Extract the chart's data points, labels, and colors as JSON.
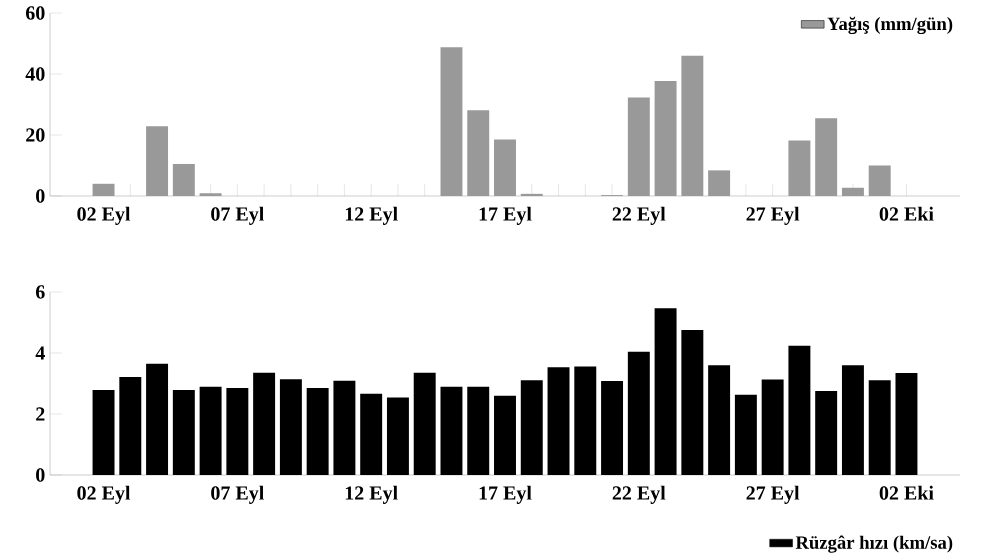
{
  "chart_data": [
    {
      "type": "bar",
      "categories": [
        "02 Eyl",
        null,
        null,
        null,
        null,
        "07 Eyl",
        null,
        null,
        null,
        null,
        "12 Eyl",
        null,
        null,
        null,
        null,
        "17 Eyl",
        null,
        null,
        null,
        null,
        "22 Eyl",
        null,
        null,
        null,
        null,
        "27 Eyl",
        null,
        null,
        null,
        null,
        "02 Eki"
      ],
      "series": [
        {
          "name": "Yağış (mm/gün)",
          "color": "#999999",
          "values": [
            4.0,
            0,
            22.9,
            10.5,
            0.9,
            0,
            0,
            0,
            0,
            0,
            0,
            0,
            0,
            48.8,
            28.1,
            18.5,
            0.7,
            0,
            0,
            0.3,
            32.3,
            37.7,
            46.0,
            8.4,
            0,
            0,
            18.2,
            25.5,
            2.7,
            10.0,
            0
          ]
        }
      ],
      "ylim": [
        0,
        60
      ],
      "yticks": [
        0,
        20,
        40,
        60
      ],
      "legend": "top right"
    },
    {
      "type": "bar",
      "categories": [
        "02 Eyl",
        null,
        null,
        null,
        null,
        "07 Eyl",
        null,
        null,
        null,
        null,
        "12 Eyl",
        null,
        null,
        null,
        null,
        "17 Eyl",
        null,
        null,
        null,
        null,
        "22 Eyl",
        null,
        null,
        null,
        null,
        "27 Eyl",
        null,
        null,
        null,
        null,
        "02 Eki"
      ],
      "series": [
        {
          "name": "Rüzgâr hızı (km/sa)",
          "color": "#000000",
          "values": [
            2.79,
            3.21,
            3.65,
            2.79,
            2.89,
            2.85,
            3.35,
            3.14,
            2.85,
            3.09,
            2.66,
            2.54,
            3.35,
            2.89,
            2.89,
            2.6,
            3.11,
            3.53,
            3.56,
            3.08,
            4.04,
            5.47,
            4.75,
            3.6,
            2.63,
            3.13,
            4.24,
            2.75,
            3.6,
            3.11,
            3.34
          ]
        }
      ],
      "ylim": [
        0,
        6
      ],
      "yticks": [
        0,
        2,
        4,
        6
      ],
      "legend": "bottom right"
    }
  ]
}
